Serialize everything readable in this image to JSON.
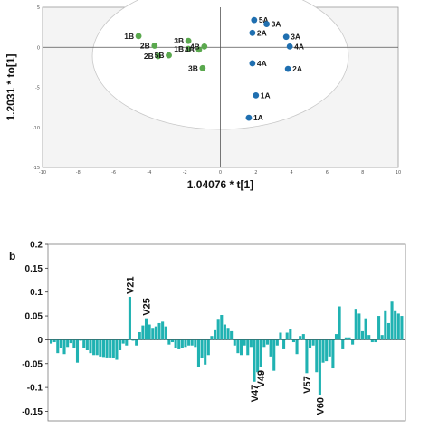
{
  "panel_b_letter": "b",
  "chart_data": [
    {
      "type": "scatter",
      "xlabel": "1.04076 * t[1]",
      "ylabel": "1.2031 * to[1]",
      "xlim": [
        -10,
        10
      ],
      "ylim": [
        -15,
        5
      ],
      "x_ticks": [
        "-10",
        "-8",
        "-6",
        "-4",
        "-2",
        "0",
        "2",
        "4",
        "6",
        "8",
        "10"
      ],
      "y_ticks": [
        "5",
        "0",
        "-5",
        "-10",
        "-15"
      ],
      "colors": {
        "B": "#5aa84e",
        "A": "#1f6fb0",
        "ellipse": "#eeeeee",
        "background": "#f4f4f4"
      },
      "series": [
        {
          "group": "B",
          "points": [
            {
              "label": "1B",
              "x": -4.6,
              "y": 1.4
            },
            {
              "label": "2B",
              "x": -3.7,
              "y": 0.2
            },
            {
              "label": "3B",
              "x": -1.8,
              "y": 0.8
            },
            {
              "label": "1B",
              "x": -1.8,
              "y": -0.2
            },
            {
              "label": "4B",
              "x": -1.2,
              "y": -0.3
            },
            {
              "label": "4B",
              "x": -0.9,
              "y": 0.1
            },
            {
              "label": "2B",
              "x": -3.5,
              "y": -1.1
            },
            {
              "label": "5B",
              "x": -2.9,
              "y": -1.0
            },
            {
              "label": "3B",
              "x": -1.0,
              "y": -2.6
            }
          ]
        },
        {
          "group": "A",
          "points": [
            {
              "label": "5A",
              "x": 1.9,
              "y": 3.4
            },
            {
              "label": "3A",
              "x": 2.6,
              "y": 2.9
            },
            {
              "label": "2A",
              "x": 1.8,
              "y": 1.8
            },
            {
              "label": "3A",
              "x": 3.7,
              "y": 1.3
            },
            {
              "label": "4A",
              "x": 3.9,
              "y": 0.1
            },
            {
              "label": "4A",
              "x": 1.8,
              "y": -2.0
            },
            {
              "label": "2A",
              "x": 3.8,
              "y": -2.7
            },
            {
              "label": "1A",
              "x": 2.0,
              "y": -6.0
            },
            {
              "label": "1A",
              "x": 1.6,
              "y": -8.8
            }
          ]
        }
      ]
    },
    {
      "type": "bar",
      "ylim": [
        -0.17,
        0.2
      ],
      "y_ticks": [
        0.2,
        0.15,
        0.1,
        0.05,
        0,
        -0.05,
        -0.1,
        -0.15
      ],
      "y_tick_labels": [
        "0.2",
        "0.15",
        "0.1",
        "0.05",
        "0",
        "-0.05",
        "-0.1",
        "-0.15"
      ],
      "bar_color": "#20b2b2",
      "values": [
        -0.008,
        -0.005,
        -0.028,
        -0.018,
        -0.03,
        -0.015,
        -0.007,
        -0.018,
        -0.048,
        -0.002,
        -0.018,
        -0.022,
        -0.028,
        -0.032,
        -0.032,
        -0.035,
        -0.036,
        -0.037,
        -0.037,
        -0.038,
        -0.042,
        -0.022,
        -0.008,
        -0.012,
        0.09,
        -0.002,
        -0.012,
        0.016,
        0.03,
        0.045,
        0.032,
        0.025,
        0.028,
        0.035,
        0.038,
        0.028,
        -0.01,
        -0.005,
        -0.018,
        -0.02,
        -0.018,
        -0.015,
        -0.012,
        -0.012,
        -0.015,
        -0.058,
        -0.038,
        -0.052,
        -0.032,
        0.008,
        0.02,
        0.042,
        0.052,
        0.032,
        0.025,
        0.018,
        -0.012,
        -0.028,
        -0.032,
        -0.012,
        -0.032,
        -0.015,
        -0.088,
        -0.068,
        -0.058,
        -0.015,
        -0.01,
        -0.035,
        -0.065,
        -0.012,
        0.015,
        -0.02,
        0.015,
        0.022,
        -0.005,
        -0.03,
        0.008,
        0.012,
        -0.07,
        -0.018,
        -0.012,
        -0.068,
        -0.115,
        -0.048,
        -0.045,
        -0.035,
        -0.06,
        0.012,
        0.07,
        -0.02,
        0.005,
        0.005,
        -0.01,
        0.065,
        0.055,
        0.018,
        0.045,
        0.01,
        -0.005,
        -0.005,
        0.05,
        0.01,
        0.06,
        0.035,
        0.08,
        0.06,
        0.055,
        0.05
      ],
      "annotations": [
        {
          "text": "V21",
          "index": 24
        },
        {
          "text": "V25",
          "index": 29
        },
        {
          "text": "V47",
          "index": 62
        },
        {
          "text": "V49",
          "index": 64
        },
        {
          "text": "V57",
          "index": 78
        },
        {
          "text": "V60",
          "index": 82
        }
      ]
    }
  ]
}
